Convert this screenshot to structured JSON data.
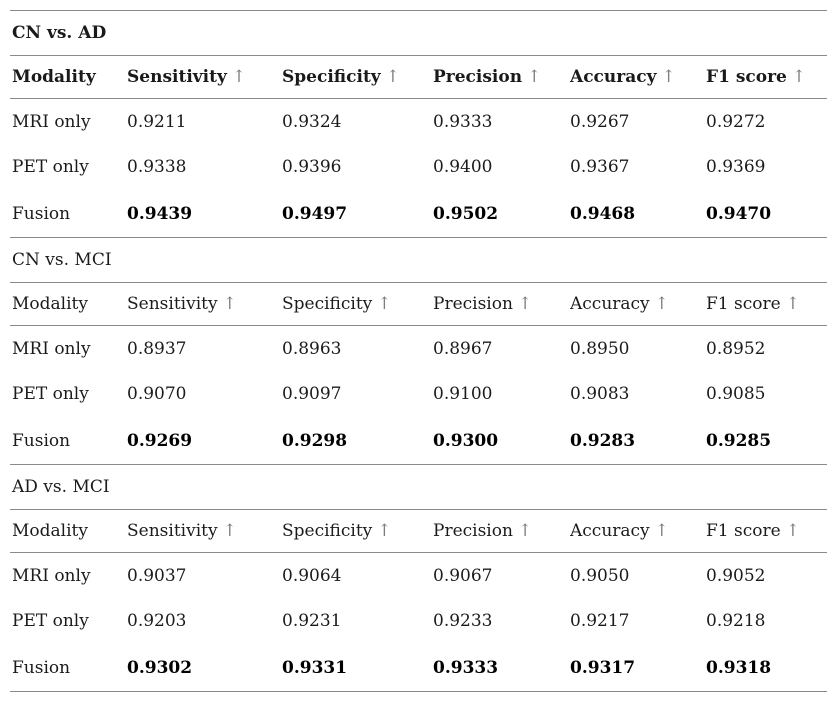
{
  "page": {
    "background_color": "#ffffff",
    "rule_color": "#8a8a8a",
    "text_color": "#1b1b1b",
    "arrow_color": "#7d7d7d",
    "arrow_glyph": "↑"
  },
  "tables": [
    {
      "section_title": "CN vs. AD",
      "title_bold": true,
      "headers_bold": true,
      "columns": [
        {
          "label": "Modality"
        },
        {
          "label": "Sensitivity",
          "arrow": "↑"
        },
        {
          "label": "Specificity",
          "arrow": "↑"
        },
        {
          "label": "Precision",
          "arrow": "↑"
        },
        {
          "label": "Accuracy",
          "arrow": "↑"
        },
        {
          "label": "F1 score",
          "arrow": "↑"
        }
      ],
      "rows": [
        {
          "modality": "MRI only",
          "bold_values": false,
          "values": [
            "0.9211",
            "0.9324",
            "0.9333",
            "0.9267",
            "0.9272"
          ]
        },
        {
          "modality": "PET only",
          "bold_values": false,
          "values": [
            "0.9338",
            "0.9396",
            "0.9400",
            "0.9367",
            "0.9369"
          ]
        },
        {
          "modality": "Fusion",
          "bold_values": true,
          "values": [
            "0.9439",
            "0.9497",
            "0.9502",
            "0.9468",
            "0.9470"
          ]
        }
      ]
    },
    {
      "section_title": "CN vs. MCI",
      "title_bold": false,
      "headers_bold": false,
      "columns": [
        {
          "label": "Modality"
        },
        {
          "label": "Sensitivity",
          "arrow": "↑"
        },
        {
          "label": "Specificity",
          "arrow": "↑"
        },
        {
          "label": "Precision",
          "arrow": "↑"
        },
        {
          "label": "Accuracy",
          "arrow": "↑"
        },
        {
          "label": "F1 score",
          "arrow": "↑"
        }
      ],
      "rows": [
        {
          "modality": "MRI only",
          "bold_values": false,
          "values": [
            "0.8937",
            "0.8963",
            "0.8967",
            "0.8950",
            "0.8952"
          ]
        },
        {
          "modality": "PET only",
          "bold_values": false,
          "values": [
            "0.9070",
            "0.9097",
            "0.9100",
            "0.9083",
            "0.9085"
          ]
        },
        {
          "modality": "Fusion",
          "bold_values": true,
          "values": [
            "0.9269",
            "0.9298",
            "0.9300",
            "0.9283",
            "0.9285"
          ]
        }
      ]
    },
    {
      "section_title": "AD vs. MCI",
      "title_bold": false,
      "headers_bold": false,
      "columns": [
        {
          "label": "Modality"
        },
        {
          "label": "Sensitivity",
          "arrow": "↑"
        },
        {
          "label": "Specificity",
          "arrow": "↑"
        },
        {
          "label": "Precision",
          "arrow": "↑"
        },
        {
          "label": "Accuracy",
          "arrow": "↑"
        },
        {
          "label": "F1 score",
          "arrow": "↑"
        }
      ],
      "rows": [
        {
          "modality": "MRI only",
          "bold_values": false,
          "values": [
            "0.9037",
            "0.9064",
            "0.9067",
            "0.9050",
            "0.9052"
          ]
        },
        {
          "modality": "PET only",
          "bold_values": false,
          "values": [
            "0.9203",
            "0.9231",
            "0.9233",
            "0.9217",
            "0.9218"
          ]
        },
        {
          "modality": "Fusion",
          "bold_values": true,
          "values": [
            "0.9302",
            "0.9331",
            "0.9333",
            "0.9317",
            "0.9318"
          ]
        }
      ]
    }
  ]
}
